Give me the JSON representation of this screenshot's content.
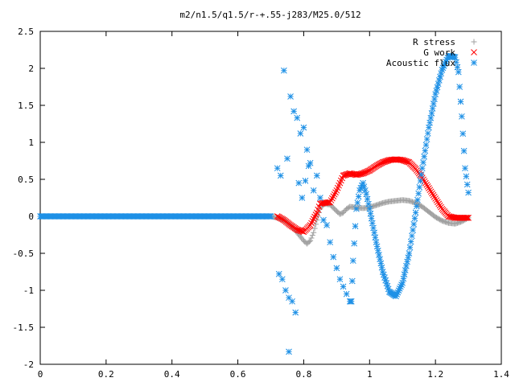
{
  "chart_data": {
    "type": "scatter",
    "title": "m2/n1.5/q1.5/r-+.55-j283/M25.0/512",
    "xlabel": "",
    "ylabel": "",
    "xlim": [
      0,
      1.4
    ],
    "ylim": [
      -2,
      2.5
    ],
    "x_ticks": [
      0,
      0.2,
      0.4,
      0.6,
      0.8,
      1,
      1.2,
      1.4
    ],
    "y_ticks": [
      -2,
      -1.5,
      -1,
      -0.5,
      0,
      0.5,
      1,
      1.5,
      2,
      2.5
    ],
    "x_tick_labels": [
      "0",
      "0.2",
      "0.4",
      "0.6",
      "0.8",
      "1",
      "1.2",
      "1.4"
    ],
    "y_tick_labels": [
      "-2",
      "-1.5",
      "-1",
      "-0.5",
      "0",
      "0.5",
      "1",
      "1.5",
      "2",
      "2.5"
    ],
    "grid": false,
    "legend_position": "top-right",
    "series": [
      {
        "name": "R stress",
        "marker": "plus",
        "color": "#a0a0a0",
        "x": [
          0.0,
          0.1,
          0.2,
          0.3,
          0.4,
          0.5,
          0.6,
          0.7,
          0.72,
          0.74,
          0.76,
          0.78,
          0.8,
          0.81,
          0.82,
          0.83,
          0.84,
          0.85,
          0.86,
          0.88,
          0.9,
          0.91,
          0.92,
          0.93,
          0.94,
          0.96,
          0.98,
          1.0,
          1.02,
          1.04,
          1.06,
          1.08,
          1.1,
          1.12,
          1.14,
          1.16,
          1.18,
          1.2,
          1.22,
          1.24,
          1.26,
          1.28,
          1.3
        ],
        "y": [
          0,
          0,
          0,
          0,
          0,
          0,
          0,
          0,
          -0.02,
          -0.05,
          -0.12,
          -0.22,
          -0.33,
          -0.37,
          -0.33,
          -0.22,
          -0.05,
          0.1,
          0.17,
          0.16,
          0.07,
          0.03,
          0.05,
          0.1,
          0.13,
          0.12,
          0.11,
          0.12,
          0.15,
          0.18,
          0.2,
          0.21,
          0.22,
          0.21,
          0.18,
          0.13,
          0.06,
          -0.01,
          -0.06,
          -0.09,
          -0.1,
          -0.07,
          -0.02
        ]
      },
      {
        "name": "G work",
        "marker": "cross",
        "color": "#ff0000",
        "x": [
          0.72,
          0.74,
          0.76,
          0.78,
          0.8,
          0.82,
          0.84,
          0.85,
          0.86,
          0.88,
          0.9,
          0.92,
          0.94,
          0.96,
          0.98,
          1.0,
          1.02,
          1.04,
          1.06,
          1.08,
          1.1,
          1.12,
          1.14,
          1.16,
          1.18,
          1.2,
          1.22,
          1.24,
          1.26,
          1.28,
          1.3
        ],
        "y": [
          0.0,
          -0.05,
          -0.12,
          -0.18,
          -0.21,
          -0.12,
          0.05,
          0.17,
          0.18,
          0.19,
          0.35,
          0.55,
          0.58,
          0.56,
          0.58,
          0.62,
          0.68,
          0.73,
          0.76,
          0.77,
          0.76,
          0.73,
          0.64,
          0.52,
          0.38,
          0.24,
          0.1,
          0.0,
          -0.02,
          -0.02,
          -0.02
        ]
      },
      {
        "name": "Acoustic flux",
        "marker": "star",
        "color": "#1e90e6",
        "x": [
          0.0,
          0.1,
          0.2,
          0.3,
          0.4,
          0.5,
          0.6,
          0.7,
          0.72,
          0.725,
          0.73,
          0.735,
          0.74,
          0.745,
          0.75,
          0.755,
          0.76,
          0.765,
          0.77,
          0.775,
          0.78,
          0.785,
          0.79,
          0.795,
          0.8,
          0.805,
          0.81,
          0.815,
          0.82,
          0.83,
          0.84,
          0.85,
          0.86,
          0.87,
          0.88,
          0.89,
          0.9,
          0.91,
          0.92,
          0.93,
          0.94,
          0.945,
          0.95,
          0.96,
          0.97,
          0.98,
          0.99,
          1.0,
          1.02,
          1.04,
          1.06,
          1.08,
          1.1,
          1.12,
          1.14,
          1.16,
          1.18,
          1.2,
          1.22,
          1.24,
          1.26,
          1.27,
          1.28,
          1.29,
          1.3
        ],
        "y": [
          0,
          0,
          0,
          0,
          0,
          0,
          0,
          0,
          0.65,
          -0.78,
          0.55,
          -0.85,
          1.97,
          -1.0,
          0.78,
          -1.1,
          1.62,
          -1.15,
          1.42,
          -1.3,
          1.33,
          0.45,
          1.12,
          0.25,
          1.2,
          0.48,
          0.9,
          0.68,
          0.72,
          0.35,
          0.55,
          0.25,
          -0.05,
          -0.12,
          -0.35,
          -0.55,
          -0.7,
          -0.85,
          -0.95,
          -1.05,
          -1.15,
          -1.15,
          -0.6,
          0.1,
          0.35,
          0.45,
          0.3,
          0.1,
          -0.35,
          -0.75,
          -1.02,
          -1.08,
          -0.9,
          -0.5,
          0.05,
          0.65,
          1.2,
          1.65,
          1.98,
          2.17,
          2.15,
          1.95,
          1.35,
          0.65,
          0.32
        ]
      },
      {
        "name": "",
        "marker": "star",
        "color": "#1e90e6",
        "x": [
          0.755
        ],
        "y": [
          -1.83
        ]
      }
    ]
  }
}
